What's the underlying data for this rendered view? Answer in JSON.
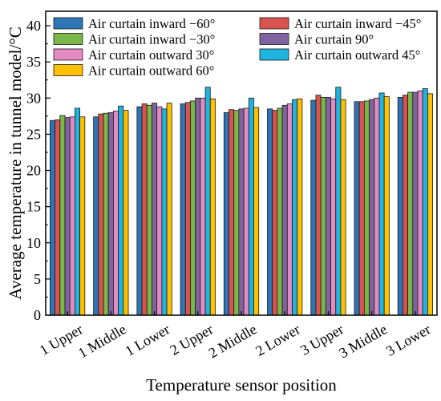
{
  "chart_data": {
    "type": "bar",
    "xlabel": "Temperature sensor position",
    "ylabel": "Average temperature in tunnel model/°C",
    "ylim": [
      0,
      42
    ],
    "yticks": [
      0,
      5,
      10,
      15,
      20,
      25,
      30,
      35,
      40
    ],
    "legend_position": "top",
    "categories": [
      "1 Upper",
      "1 Middle",
      "1 Lower",
      "2 Upper",
      "2 Middle",
      "2 Lower",
      "3 Upper",
      "3 Middle",
      "3 Lower"
    ],
    "series": [
      {
        "name": "Air curtain inward −60°",
        "color": "#2e75b6",
        "values": [
          26.9,
          27.4,
          28.8,
          29.2,
          28.0,
          28.5,
          29.7,
          29.5,
          30.1
        ]
      },
      {
        "name": "Air curtain inward −45°",
        "color": "#d9534f",
        "values": [
          27.0,
          27.8,
          29.2,
          29.4,
          28.4,
          28.3,
          30.4,
          29.5,
          30.4
        ]
      },
      {
        "name": "Air curtain inward −30°",
        "color": "#7ab648",
        "values": [
          27.6,
          27.9,
          29.0,
          29.6,
          28.3,
          28.6,
          30.1,
          29.6,
          30.8
        ]
      },
      {
        "name": "Air curtain 90°",
        "color": "#8064a2",
        "values": [
          27.3,
          28.0,
          29.3,
          30.0,
          28.5,
          29.0,
          30.1,
          29.8,
          30.8
        ]
      },
      {
        "name": "Air curtain outward 30°",
        "color": "#e48ac3",
        "values": [
          27.4,
          28.2,
          28.8,
          30.0,
          28.6,
          29.2,
          29.9,
          30.0,
          31.0
        ]
      },
      {
        "name": "Air curtain outward 45°",
        "color": "#1fb3e0",
        "values": [
          28.6,
          28.9,
          28.5,
          31.5,
          30.0,
          29.8,
          31.5,
          30.7,
          31.3
        ]
      },
      {
        "name": "Air curtain outward 60°",
        "color": "#ffc000",
        "values": [
          27.4,
          28.3,
          29.3,
          29.9,
          28.7,
          29.9,
          29.8,
          30.2,
          30.6
        ]
      }
    ]
  }
}
